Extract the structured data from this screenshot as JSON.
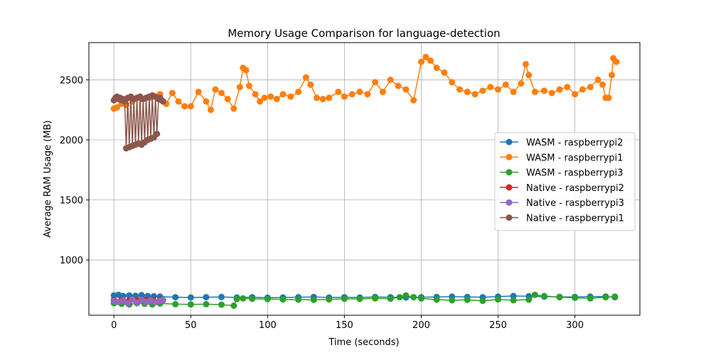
{
  "chart_data": {
    "type": "line",
    "title": "Memory Usage Comparison for language-detection",
    "xlabel": "Time (seconds)",
    "ylabel": "Average RAM Usage (MB)",
    "xlim": [
      -16.3,
      342.3
    ],
    "ylim": [
      540,
      2810
    ],
    "xticks": [
      0,
      50,
      100,
      150,
      200,
      250,
      300
    ],
    "yticks": [
      1000,
      1500,
      2000,
      2500
    ],
    "grid": true,
    "legend_position": "right",
    "series": [
      {
        "name": "WASM - raspberrypi2",
        "color": "#1f77b4",
        "x": [
          0,
          3,
          6,
          10,
          14,
          18,
          22,
          26,
          30,
          40,
          50,
          60,
          70,
          80,
          90,
          100,
          110,
          120,
          130,
          140,
          150,
          160,
          170,
          180,
          190,
          200,
          210,
          220,
          230,
          240,
          250,
          260,
          270,
          280,
          290,
          300,
          310,
          320,
          326
        ],
        "y": [
          705,
          710,
          700,
          705,
          702,
          708,
          700,
          698,
          695,
          690,
          688,
          690,
          692,
          688,
          690,
          686,
          688,
          690,
          692,
          688,
          690,
          688,
          692,
          690,
          688,
          690,
          692,
          695,
          692,
          690,
          695,
          700,
          698,
          695,
          693,
          692,
          695,
          696,
          690
        ]
      },
      {
        "name": "WASM - raspberrypi1",
        "color": "#ff7f0e",
        "x": [
          0,
          2,
          5,
          8,
          12,
          18,
          24,
          30,
          34,
          38,
          42,
          46,
          50,
          55,
          60,
          63,
          66,
          70,
          74,
          78,
          82,
          84,
          86,
          88,
          92,
          95,
          98,
          102,
          106,
          110,
          115,
          120,
          125,
          128,
          132,
          136,
          140,
          146,
          150,
          155,
          160,
          165,
          170,
          175,
          180,
          185,
          190,
          195,
          200,
          203,
          206,
          210,
          215,
          220,
          225,
          230,
          235,
          240,
          245,
          250,
          255,
          260,
          265,
          268,
          270,
          274,
          280,
          285,
          290,
          295,
          300,
          305,
          310,
          315,
          318,
          320,
          322,
          324,
          325,
          327
        ],
        "y": [
          2260,
          2270,
          2300,
          2290,
          2320,
          2340,
          2350,
          2380,
          2300,
          2390,
          2320,
          2280,
          2280,
          2400,
          2320,
          2250,
          2420,
          2390,
          2340,
          2260,
          2440,
          2600,
          2580,
          2450,
          2380,
          2320,
          2350,
          2360,
          2340,
          2380,
          2360,
          2400,
          2520,
          2460,
          2350,
          2340,
          2350,
          2400,
          2360,
          2380,
          2400,
          2380,
          2480,
          2400,
          2500,
          2450,
          2420,
          2330,
          2650,
          2690,
          2660,
          2600,
          2560,
          2480,
          2420,
          2400,
          2380,
          2410,
          2440,
          2420,
          2460,
          2400,
          2470,
          2630,
          2540,
          2400,
          2410,
          2390,
          2420,
          2440,
          2380,
          2420,
          2440,
          2500,
          2460,
          2350,
          2350,
          2540,
          2680,
          2650
        ]
      },
      {
        "name": "WASM - raspberrypi3",
        "color": "#2ca02c",
        "x": [
          0,
          5,
          10,
          15,
          20,
          25,
          30,
          40,
          50,
          60,
          70,
          78,
          80,
          84,
          90,
          100,
          110,
          120,
          130,
          140,
          150,
          160,
          170,
          180,
          186,
          190,
          195,
          200,
          210,
          220,
          230,
          240,
          250,
          260,
          270,
          274,
          280,
          290,
          300,
          310,
          320,
          326
        ],
        "y": [
          640,
          635,
          630,
          640,
          635,
          630,
          638,
          632,
          630,
          632,
          628,
          620,
          675,
          680,
          678,
          675,
          672,
          670,
          668,
          672,
          678,
          676,
          680,
          678,
          690,
          705,
          690,
          680,
          670,
          665,
          668,
          660,
          672,
          665,
          670,
          710,
          700,
          690,
          685,
          680,
          690,
          695
        ]
      },
      {
        "name": "Native - raspberrypi2",
        "color": "#d62728",
        "x": [
          0,
          5,
          10,
          15,
          20,
          25,
          30
        ],
        "y": [
          668,
          670,
          665,
          670,
          668,
          670,
          668
        ]
      },
      {
        "name": "Native - raspberrypi3",
        "color": "#9467bd",
        "x": [
          0,
          3,
          6,
          9,
          12,
          15,
          18,
          21,
          24,
          27,
          30,
          32
        ],
        "y": [
          660,
          650,
          665,
          640,
          670,
          645,
          668,
          650,
          665,
          648,
          660,
          665
        ]
      },
      {
        "name": "Native - raspberrypi1",
        "color": "#8c564b",
        "x": [
          0,
          1,
          2,
          3,
          4,
          5,
          6,
          7,
          8,
          9,
          10,
          11,
          12,
          13,
          14,
          15,
          16,
          17,
          18,
          19,
          20,
          21,
          22,
          23,
          24,
          25,
          26,
          27,
          28,
          29,
          30,
          31,
          32
        ],
        "y": [
          2330,
          2350,
          2360,
          2340,
          2350,
          2330,
          2340,
          2320,
          1930,
          2350,
          1940,
          2360,
          1950,
          2340,
          1960,
          2350,
          1970,
          2360,
          1960,
          2340,
          1980,
          2350,
          2000,
          2360,
          2010,
          2370,
          2020,
          2360,
          2050,
          2340,
          2350,
          2330,
          2320
        ]
      }
    ]
  }
}
